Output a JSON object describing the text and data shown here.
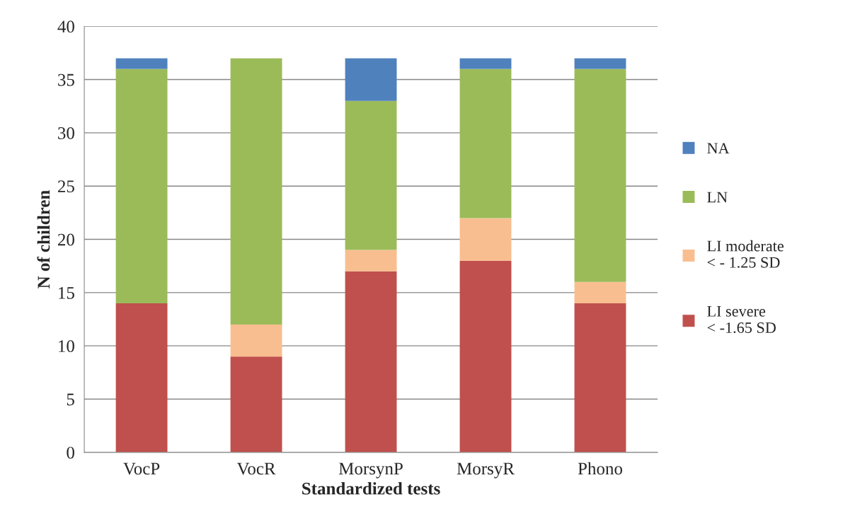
{
  "chart_data": {
    "type": "bar",
    "stacked": true,
    "xlabel": "Standardized tests",
    "ylabel": "N of children",
    "categories": [
      "VocP",
      "VocR",
      "MorsynP",
      "MorsyR",
      "Phono"
    ],
    "series": [
      {
        "name": "LI severe\n< -1.65 SD",
        "color": "#c0504d",
        "values": [
          14,
          9,
          17,
          18,
          14
        ]
      },
      {
        "name": "LI moderate\n< - 1.25 SD",
        "color": "#f9be8f",
        "values": [
          0,
          3,
          2,
          4,
          2
        ]
      },
      {
        "name": "LN",
        "color": "#9bbb59",
        "values": [
          22,
          25,
          14,
          14,
          20
        ]
      },
      {
        "name": "NA",
        "color": "#4f81bd",
        "values": [
          1,
          0,
          4,
          1,
          1
        ]
      }
    ],
    "ylim": [
      0,
      40
    ],
    "yticks": [
      0,
      5,
      10,
      15,
      20,
      25,
      30,
      35,
      40
    ],
    "grid": "y",
    "legend": "right"
  }
}
